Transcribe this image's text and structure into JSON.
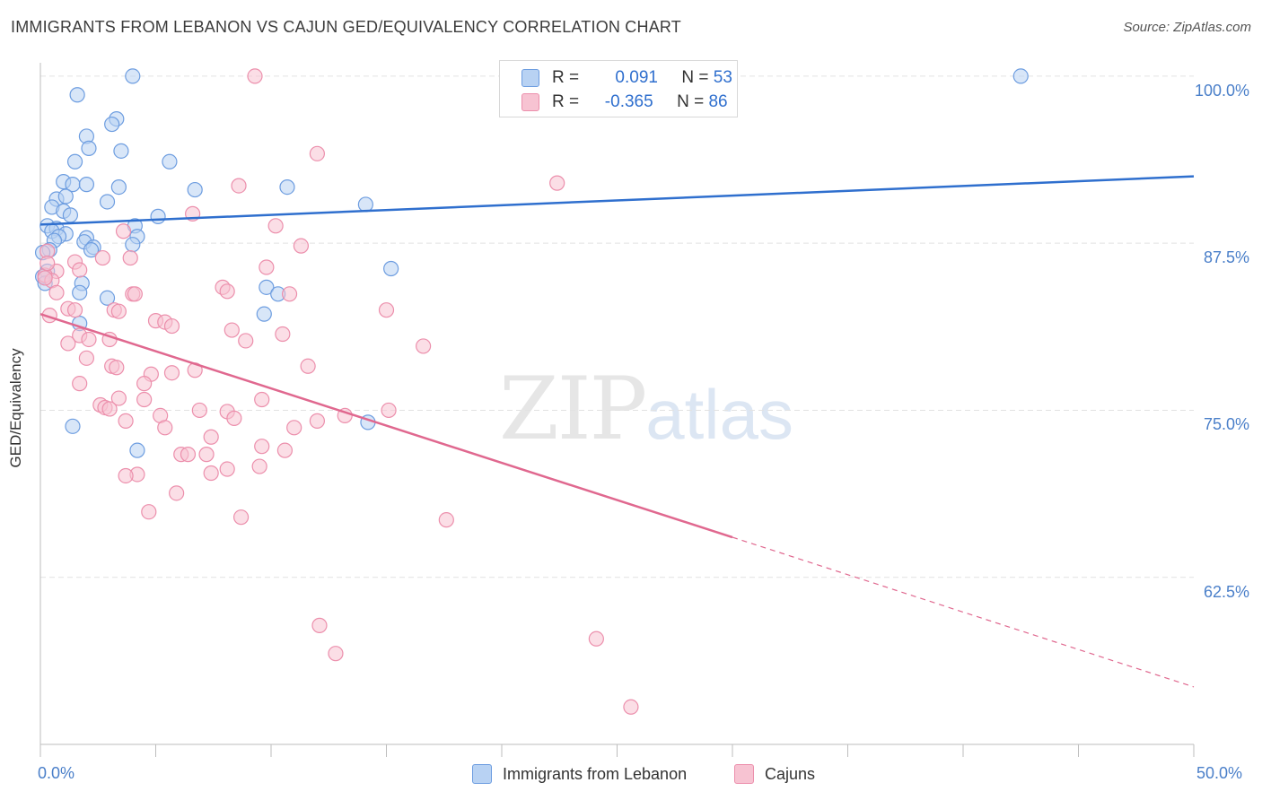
{
  "header": {
    "title": "IMMIGRANTS FROM LEBANON VS CAJUN GED/EQUIVALENCY CORRELATION CHART",
    "source": "Source: ZipAtlas.com"
  },
  "watermark": {
    "zip": "ZIP",
    "atlas": "atlas"
  },
  "legend": {
    "rows": [
      {
        "r_label": "R =",
        "r_value": "0.091",
        "n_label": "N =",
        "n_value": "53"
      },
      {
        "r_label": "R =",
        "r_value": "-0.365",
        "n_label": "N =",
        "n_value": "86"
      }
    ]
  },
  "bottom_legend": {
    "series1": "Immigrants from Lebanon",
    "series2": "Cajuns"
  },
  "colors": {
    "blue_fill": "#b8d2f3",
    "blue_stroke": "#6d9de0",
    "blue_line": "#2f6fce",
    "pink_fill": "#f7c3d2",
    "pink_stroke": "#ec8fac",
    "pink_line": "#e0688f",
    "tick_text": "#4a7fc9",
    "grid": "#e2e2e2"
  },
  "chart_data": {
    "type": "scatter",
    "title": "IMMIGRANTS FROM LEBANON VS CAJUN GED/EQUIVALENCY CORRELATION CHART",
    "xlabel": "",
    "ylabel": "GED/Equivalency",
    "xlim": [
      0,
      50
    ],
    "ylim": [
      50,
      101
    ],
    "x_tick_labels": [
      "0.0%",
      "50.0%"
    ],
    "y_ticks": [
      62.5,
      75.0,
      87.5,
      100.0
    ],
    "y_tick_labels": [
      "62.5%",
      "75.0%",
      "87.5%",
      "100.0%"
    ],
    "grid": true,
    "legend_position": "top-center",
    "series": [
      {
        "name": "Immigrants from Lebanon",
        "color": "#6d9de0",
        "trend": {
          "x": [
            0,
            50
          ],
          "y": [
            88.9,
            92.5
          ],
          "style": "solid"
        },
        "points": [
          [
            4.0,
            100.0
          ],
          [
            42.5,
            100.0
          ],
          [
            1.6,
            98.6
          ],
          [
            3.3,
            96.8
          ],
          [
            3.1,
            96.4
          ],
          [
            2.0,
            95.5
          ],
          [
            3.5,
            94.4
          ],
          [
            2.1,
            94.6
          ],
          [
            5.6,
            93.6
          ],
          [
            1.5,
            93.6
          ],
          [
            1.0,
            92.1
          ],
          [
            1.4,
            91.9
          ],
          [
            2.0,
            91.9
          ],
          [
            3.4,
            91.7
          ],
          [
            6.7,
            91.5
          ],
          [
            10.7,
            91.7
          ],
          [
            0.7,
            90.8
          ],
          [
            1.1,
            91.0
          ],
          [
            2.9,
            90.6
          ],
          [
            14.1,
            90.4
          ],
          [
            0.5,
            90.2
          ],
          [
            1.0,
            89.9
          ],
          [
            1.3,
            89.6
          ],
          [
            5.1,
            89.5
          ],
          [
            0.3,
            88.8
          ],
          [
            0.7,
            88.6
          ],
          [
            4.1,
            88.8
          ],
          [
            0.5,
            88.4
          ],
          [
            1.1,
            88.2
          ],
          [
            4.2,
            88.0
          ],
          [
            0.8,
            88.0
          ],
          [
            2.0,
            87.9
          ],
          [
            0.6,
            87.7
          ],
          [
            1.9,
            87.6
          ],
          [
            4.0,
            87.4
          ],
          [
            2.3,
            87.2
          ],
          [
            0.4,
            87.0
          ],
          [
            2.2,
            87.0
          ],
          [
            0.1,
            86.8
          ],
          [
            15.2,
            85.6
          ],
          [
            0.3,
            85.4
          ],
          [
            0.1,
            85.0
          ],
          [
            0.2,
            84.5
          ],
          [
            1.8,
            84.5
          ],
          [
            9.8,
            84.2
          ],
          [
            1.7,
            83.8
          ],
          [
            10.3,
            83.7
          ],
          [
            2.9,
            83.4
          ],
          [
            9.7,
            82.2
          ],
          [
            1.7,
            81.5
          ],
          [
            14.2,
            74.1
          ],
          [
            1.4,
            73.8
          ],
          [
            4.2,
            72.0
          ]
        ]
      },
      {
        "name": "Cajuns",
        "color": "#ec8fac",
        "trend": {
          "x": [
            0,
            30
          ],
          "y": [
            82.2,
            65.5
          ],
          "style": "solid",
          "extension": {
            "x": [
              30,
              50
            ],
            "y": [
              65.5,
              54.3
            ],
            "style": "dashed"
          }
        },
        "points": [
          [
            9.3,
            100.0
          ],
          [
            12.0,
            94.2
          ],
          [
            22.4,
            92.0
          ],
          [
            8.6,
            91.8
          ],
          [
            6.6,
            89.7
          ],
          [
            10.2,
            88.8
          ],
          [
            3.6,
            88.4
          ],
          [
            11.3,
            87.3
          ],
          [
            3.9,
            86.4
          ],
          [
            2.7,
            86.4
          ],
          [
            0.3,
            86.9
          ],
          [
            1.5,
            86.1
          ],
          [
            9.8,
            85.7
          ],
          [
            0.7,
            85.4
          ],
          [
            1.7,
            85.5
          ],
          [
            0.2,
            85.1
          ],
          [
            0.5,
            84.7
          ],
          [
            7.9,
            84.2
          ],
          [
            8.1,
            83.9
          ],
          [
            4.0,
            83.7
          ],
          [
            4.1,
            83.7
          ],
          [
            10.8,
            83.7
          ],
          [
            0.7,
            83.8
          ],
          [
            1.2,
            82.6
          ],
          [
            15.0,
            82.5
          ],
          [
            3.2,
            82.5
          ],
          [
            1.5,
            82.5
          ],
          [
            3.4,
            82.4
          ],
          [
            0.4,
            82.1
          ],
          [
            5.0,
            81.7
          ],
          [
            5.4,
            81.6
          ],
          [
            5.7,
            81.3
          ],
          [
            8.3,
            81.0
          ],
          [
            10.5,
            80.7
          ],
          [
            1.7,
            80.6
          ],
          [
            2.1,
            80.3
          ],
          [
            3.0,
            80.3
          ],
          [
            8.9,
            80.2
          ],
          [
            1.2,
            80.0
          ],
          [
            16.6,
            79.8
          ],
          [
            2.0,
            78.9
          ],
          [
            11.6,
            78.3
          ],
          [
            3.1,
            78.3
          ],
          [
            3.3,
            78.2
          ],
          [
            6.7,
            78.0
          ],
          [
            5.7,
            77.8
          ],
          [
            4.8,
            77.7
          ],
          [
            1.7,
            77.0
          ],
          [
            4.5,
            77.0
          ],
          [
            4.5,
            75.8
          ],
          [
            9.6,
            75.8
          ],
          [
            3.4,
            75.9
          ],
          [
            2.6,
            75.4
          ],
          [
            2.8,
            75.2
          ],
          [
            3.0,
            75.1
          ],
          [
            6.9,
            75.0
          ],
          [
            8.1,
            74.9
          ],
          [
            15.1,
            75.0
          ],
          [
            13.2,
            74.6
          ],
          [
            5.2,
            74.6
          ],
          [
            8.4,
            74.4
          ],
          [
            3.7,
            74.2
          ],
          [
            12.0,
            74.2
          ],
          [
            11.0,
            73.7
          ],
          [
            5.4,
            73.7
          ],
          [
            7.4,
            73.0
          ],
          [
            9.6,
            72.3
          ],
          [
            10.6,
            72.0
          ],
          [
            6.1,
            71.7
          ],
          [
            6.4,
            71.7
          ],
          [
            7.2,
            71.7
          ],
          [
            9.5,
            70.8
          ],
          [
            8.1,
            70.6
          ],
          [
            7.4,
            70.3
          ],
          [
            4.2,
            70.2
          ],
          [
            3.7,
            70.1
          ],
          [
            5.9,
            68.8
          ],
          [
            4.7,
            67.4
          ],
          [
            8.7,
            67.0
          ],
          [
            17.6,
            66.8
          ],
          [
            12.1,
            58.9
          ],
          [
            12.8,
            56.8
          ],
          [
            24.1,
            57.9
          ],
          [
            25.6,
            52.8
          ],
          [
            0.2,
            84.9
          ],
          [
            0.3,
            86.0
          ]
        ]
      }
    ]
  }
}
